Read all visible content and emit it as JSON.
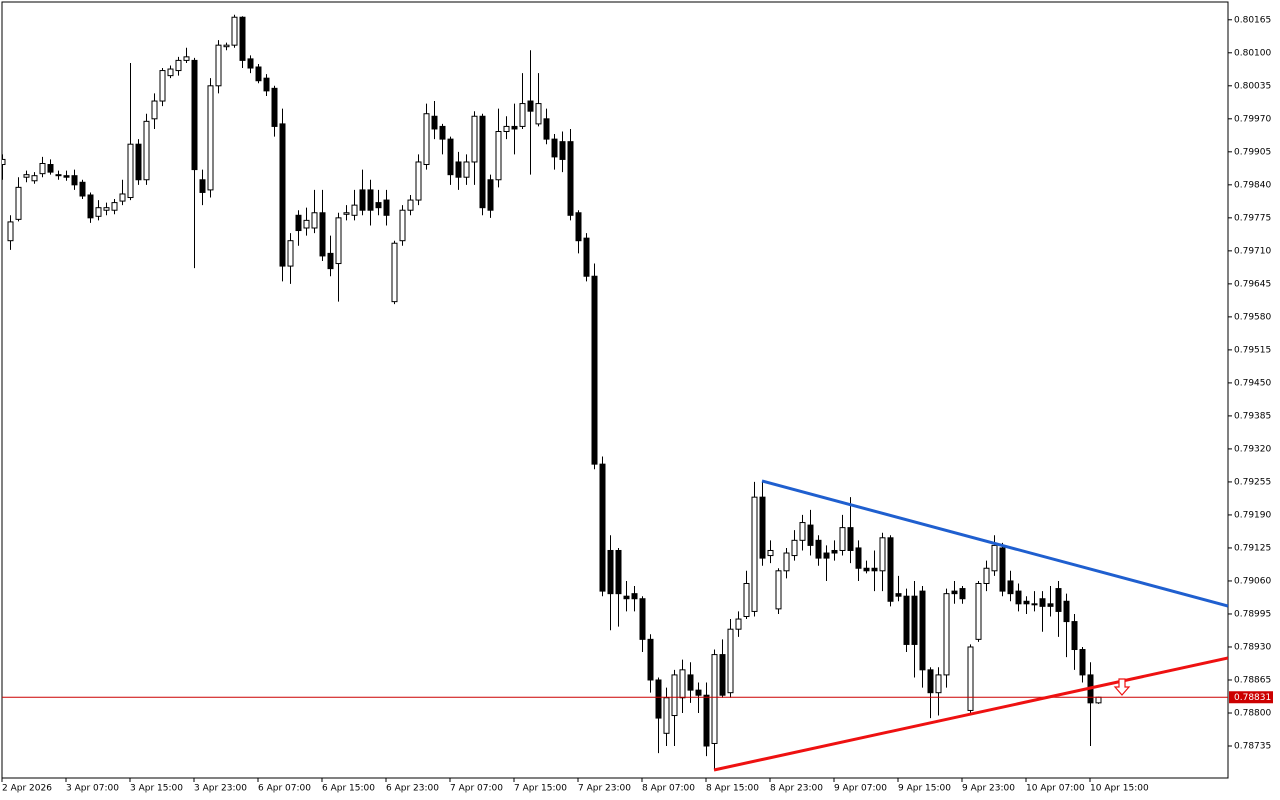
{
  "chart_data": {
    "type": "candlestick",
    "up_color": "#ffffff",
    "down_color": "#000000",
    "edge_color": "#000000",
    "ylim": [
      0.78672,
      0.802
    ],
    "yticks": [
      0.80165,
      {
        "value": 0.801,
        "label": "0.80100"
      },
      0.80035,
      {
        "value": 0.7997,
        "label": "0.79970"
      },
      0.79905,
      {
        "value": 0.7984,
        "label": "0.79840"
      },
      0.79775,
      {
        "value": 0.7971,
        "label": "0.79710"
      },
      0.79645,
      {
        "value": 0.7958,
        "label": "0.79580"
      },
      0.79515,
      {
        "value": 0.7945,
        "label": "0.79450"
      },
      0.79385,
      {
        "value": 0.7932,
        "label": "0.79320"
      },
      0.79255,
      {
        "value": 0.7919,
        "label": "0.79190"
      },
      0.79125,
      {
        "value": 0.7906,
        "label": "0.79060"
      },
      0.78995,
      {
        "value": 0.7893,
        "label": "0.78930"
      },
      0.78865,
      {
        "value": 0.788,
        "label": "0.78800"
      },
      0.78735
    ],
    "last_price": 0.78831,
    "last_price_color": "#cc0000",
    "categories": [
      "2 Apr 2026",
      null,
      null,
      null,
      null,
      null,
      null,
      null,
      "3 Apr 07:00",
      null,
      null,
      null,
      null,
      null,
      null,
      null,
      "3 Apr 15:00",
      null,
      null,
      null,
      null,
      null,
      null,
      null,
      "3 Apr 23:00",
      null,
      null,
      null,
      null,
      null,
      null,
      null,
      "6 Apr 07:00",
      null,
      null,
      null,
      null,
      null,
      null,
      null,
      "6 Apr 15:00",
      null,
      null,
      null,
      null,
      null,
      null,
      null,
      "6 Apr 23:00",
      null,
      null,
      null,
      null,
      null,
      null,
      null,
      "7 Apr 07:00",
      null,
      null,
      null,
      null,
      null,
      null,
      null,
      "7 Apr 15:00",
      null,
      null,
      null,
      null,
      null,
      null,
      null,
      "7 Apr 23:00",
      null,
      null,
      null,
      null,
      null,
      null,
      null,
      "8 Apr 07:00",
      null,
      null,
      null,
      null,
      null,
      null,
      null,
      "8 Apr 15:00",
      null,
      null,
      null,
      null,
      null,
      null,
      null,
      "8 Apr 23:00",
      null,
      null,
      null,
      null,
      null,
      null,
      null,
      "9 Apr 07:00",
      null,
      null,
      null,
      null,
      null,
      null,
      null,
      "9 Apr 15:00",
      null,
      null,
      null,
      null,
      null,
      null,
      null,
      "9 Apr 23:00",
      null,
      null,
      null,
      null,
      null,
      null,
      null,
      "10 Apr 07:00",
      null,
      null,
      null,
      null,
      null,
      null,
      null,
      "10 Apr 15:00",
      null
    ],
    "open": [
      0.7988,
      0.7973,
      0.79772,
      0.79855,
      0.79848,
      0.79862,
      0.7988,
      0.7986,
      0.79858,
      0.79858,
      0.79845,
      0.7982,
      0.79778,
      0.7979,
      0.7979,
      0.79808,
      0.79815,
      0.7992,
      0.7985,
      0.7997,
      0.80005,
      0.80055,
      0.80065,
      0.80085,
      0.80085,
      0.7985,
      0.7983,
      0.80035,
      0.80112,
      0.80115,
      0.8017,
      0.80088,
      0.80072,
      0.8005,
      0.8003,
      0.7996,
      0.7968,
      0.7978,
      0.79755,
      0.79755,
      0.79785,
      0.79705,
      0.79685,
      0.79782,
      0.7978,
      0.7983,
      0.7983,
      0.79805,
      0.7981,
      0.7961,
      0.7973,
      0.7979,
      0.7981,
      0.7988,
      0.79975,
      0.79955,
      0.7993,
      0.79885,
      0.79855,
      0.79885,
      0.79975,
      0.7985,
      0.7985,
      0.79945,
      0.79955,
      0.79955,
      0.80005,
      0.7996,
      0.7997,
      0.7993,
      0.79925,
      0.79925,
      0.79785,
      0.79735,
      0.7966,
      0.7929,
      0.7912,
      0.7912,
      0.7903,
      0.79035,
      0.79025,
      0.78945,
      0.78865,
      0.7876,
      0.78795,
      0.7883,
      0.78875,
      0.78845,
      0.78835,
      0.7874,
      0.78915,
      0.7884,
      0.78965,
      0.7899,
      0.79,
      0.79225,
      0.7911,
      0.79005,
      0.7908,
      0.7911,
      0.7914,
      0.7917,
      0.7914,
      0.79115,
      0.7912,
      0.7912,
      0.79165,
      0.79125,
      0.79085,
      0.79085,
      0.7908,
      0.79145,
      0.79035,
      0.7903,
      0.7903,
      0.7904,
      0.78885,
      0.7884,
      0.78875,
      0.7904,
      0.79045,
      0.78805,
      0.78945,
      0.79055,
      0.7908,
      0.79125,
      0.7906,
      0.7904,
      0.7902,
      0.79015,
      0.79025,
      0.79015,
      0.79045,
      0.7902,
      0.7898,
      0.78925,
      0.78875,
      0.7882
    ],
    "high": [
      0.799,
      0.7978,
      0.79855,
      0.79868,
      0.79865,
      0.79895,
      0.7989,
      0.79868,
      0.79868,
      0.7987,
      0.7985,
      0.79825,
      0.7981,
      0.79805,
      0.79812,
      0.7985,
      0.8008,
      0.7993,
      0.7998,
      0.8002,
      0.8007,
      0.80075,
      0.80092,
      0.8011,
      0.8009,
      0.7987,
      0.8005,
      0.80125,
      0.8012,
      0.80175,
      0.80172,
      0.80095,
      0.80078,
      0.80058,
      0.80035,
      0.7999,
      0.79745,
      0.7979,
      0.79795,
      0.7983,
      0.7983,
      0.7974,
      0.79785,
      0.798,
      0.7983,
      0.7987,
      0.7985,
      0.7983,
      0.7983,
      0.7973,
      0.798,
      0.7982,
      0.799,
      0.8,
      0.80005,
      0.7996,
      0.79935,
      0.79905,
      0.799,
      0.79985,
      0.7998,
      0.7986,
      0.7999,
      0.79975,
      0.8,
      0.8006,
      0.80105,
      0.8006,
      0.7999,
      0.7994,
      0.79945,
      0.7995,
      0.7979,
      0.79745,
      0.79685,
      0.79305,
      0.7915,
      0.79125,
      0.7906,
      0.7905,
      0.7903,
      0.78955,
      0.7887,
      0.7885,
      0.78885,
      0.78905,
      0.789,
      0.7886,
      0.7886,
      0.78925,
      0.78945,
      0.78985,
      0.79,
      0.7908,
      0.79255,
      0.79255,
      0.7914,
      0.79085,
      0.79125,
      0.7916,
      0.7919,
      0.792,
      0.7915,
      0.7913,
      0.7914,
      0.7919,
      0.79225,
      0.7914,
      0.791,
      0.7912,
      0.79155,
      0.7915,
      0.7907,
      0.79045,
      0.7906,
      0.7905,
      0.7889,
      0.7889,
      0.79045,
      0.7906,
      0.7905,
      0.78935,
      0.7906,
      0.791,
      0.7915,
      0.79135,
      0.7908,
      0.79055,
      0.7903,
      0.7904,
      0.7904,
      0.7905,
      0.7906,
      0.79035,
      0.78995,
      0.7893,
      0.789,
      0.78832
    ],
    "low": [
      0.7985,
      0.79712,
      0.79768,
      0.79845,
      0.79842,
      0.79855,
      0.7986,
      0.7985,
      0.79848,
      0.7983,
      0.79812,
      0.79765,
      0.7977,
      0.7978,
      0.79782,
      0.798,
      0.7981,
      0.7984,
      0.7984,
      0.7995,
      0.79995,
      0.8005,
      0.80055,
      0.8008,
      0.79676,
      0.798,
      0.79815,
      0.8002,
      0.80105,
      0.8011,
      0.8007,
      0.8006,
      0.8004,
      0.80015,
      0.79935,
      0.7965,
      0.79645,
      0.7972,
      0.7974,
      0.79745,
      0.7969,
      0.7966,
      0.7961,
      0.7977,
      0.7977,
      0.7978,
      0.7976,
      0.7978,
      0.7976,
      0.79605,
      0.7972,
      0.7978,
      0.798,
      0.7987,
      0.7993,
      0.799,
      0.7984,
      0.7983,
      0.7984,
      0.7984,
      0.7978,
      0.79775,
      0.79835,
      0.7993,
      0.799,
      0.7995,
      0.7986,
      0.79955,
      0.7992,
      0.7987,
      0.79865,
      0.7977,
      0.79705,
      0.7965,
      0.7928,
      0.7903,
      0.78963,
      0.7897,
      0.79,
      0.79,
      0.7892,
      0.7884,
      0.78721,
      0.78735,
      0.78735,
      0.788,
      0.7882,
      0.788,
      0.78715,
      0.78688,
      0.7883,
      0.7883,
      0.7895,
      0.78985,
      0.7899,
      0.7909,
      0.79095,
      0.78995,
      0.79065,
      0.791,
      0.7912,
      0.7911,
      0.7909,
      0.7906,
      0.791,
      0.7911,
      0.79095,
      0.7906,
      0.79075,
      0.7904,
      0.7904,
      0.7901,
      0.7902,
      0.7892,
      0.7887,
      0.7885,
      0.7879,
      0.78795,
      0.7885,
      0.79015,
      0.79015,
      0.788,
      0.7894,
      0.7904,
      0.7907,
      0.7903,
      0.7902,
      0.79,
      0.78995,
      0.79,
      0.7896,
      0.7899,
      0.7895,
      0.7891,
      0.78885,
      0.7886,
      0.78735,
      0.78818
    ],
    "close": [
      0.7989,
      0.79767,
      0.79835,
      0.7986,
      0.79858,
      0.79882,
      0.79865,
      0.79858,
      0.79855,
      0.7984,
      0.79818,
      0.79775,
      0.79795,
      0.79795,
      0.79805,
      0.79822,
      0.7992,
      0.7985,
      0.79965,
      0.80005,
      0.80065,
      0.80068,
      0.80085,
      0.80092,
      0.7987,
      0.79825,
      0.80035,
      0.80115,
      0.80115,
      0.8017,
      0.80085,
      0.8007,
      0.80045,
      0.80025,
      0.79955,
      0.7968,
      0.7973,
      0.7975,
      0.7977,
      0.79785,
      0.797,
      0.79675,
      0.79775,
      0.79785,
      0.798,
      0.7979,
      0.7979,
      0.79795,
      0.7978,
      0.79725,
      0.7979,
      0.7981,
      0.79885,
      0.7998,
      0.7995,
      0.7993,
      0.7986,
      0.79855,
      0.79885,
      0.79975,
      0.79795,
      0.7979,
      0.79945,
      0.79955,
      0.7995,
      0.8,
      0.79985,
      0.8,
      0.7993,
      0.79895,
      0.7989,
      0.7978,
      0.7973,
      0.7966,
      0.7929,
      0.7904,
      0.79035,
      0.79035,
      0.79025,
      0.79025,
      0.78945,
      0.78865,
      0.7879,
      0.7883,
      0.78875,
      0.78885,
      0.78845,
      0.78835,
      0.78735,
      0.78915,
      0.78835,
      0.78965,
      0.78985,
      0.79055,
      0.79225,
      0.79105,
      0.7912,
      0.7908,
      0.79115,
      0.7914,
      0.79175,
      0.7913,
      0.79105,
      0.79105,
      0.79115,
      0.79165,
      0.7912,
      0.79085,
      0.7908,
      0.7908,
      0.79145,
      0.7902,
      0.7903,
      0.78935,
      0.78935,
      0.78885,
      0.7884,
      0.78875,
      0.79035,
      0.79035,
      0.79025,
      0.7893,
      0.79055,
      0.79085,
      0.7913,
      0.7904,
      0.79035,
      0.79015,
      0.79015,
      0.79015,
      0.7901,
      0.7901,
      0.79,
      0.7898,
      0.78925,
      0.78875,
      0.7882,
      0.78831
    ]
  }
}
